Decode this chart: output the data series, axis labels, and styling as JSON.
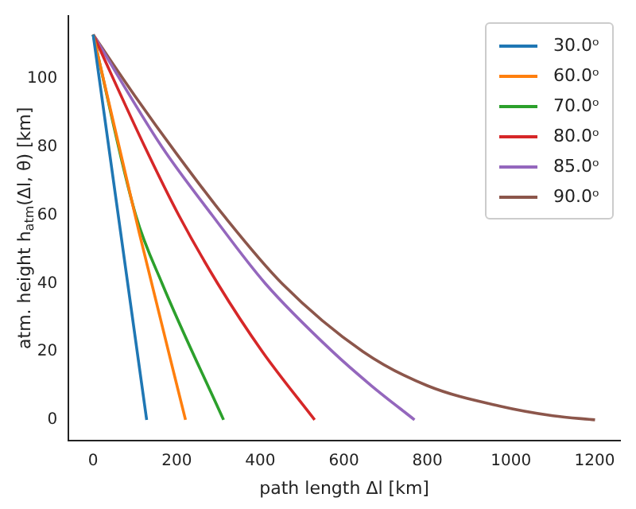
{
  "chart_data": {
    "type": "line",
    "xlabel": "path length Δl [km]",
    "ylabel": "atm. height h$_{atm}$(Δl, θ) [km]",
    "xlim": [
      -59,
      1261
    ],
    "ylim": [
      -6,
      118.5
    ],
    "xticks": [
      0,
      200,
      400,
      600,
      800,
      1000,
      1200
    ],
    "yticks": [
      0,
      20,
      40,
      60,
      80,
      100
    ],
    "legend": "top right",
    "grid": false,
    "marker": "none",
    "line_style": "solid",
    "series": [
      {
        "name": "30.0ᵒ",
        "color": "#1f77b4",
        "x": [
          0,
          128
        ],
        "values": [
          113,
          0
        ]
      },
      {
        "name": "60.0ᵒ",
        "color": "#ff7f0e",
        "x": [
          0,
          110,
          221
        ],
        "values": [
          113,
          55,
          0
        ]
      },
      {
        "name": "70.0ᵒ",
        "color": "#2ca02c",
        "x": [
          0,
          102,
          165,
          312
        ],
        "values": [
          113,
          60,
          40,
          0
        ]
      },
      {
        "name": "80.0ᵒ",
        "color": "#d62728",
        "x": [
          0,
          124,
          205,
          298,
          405,
          530
        ],
        "values": [
          113,
          80,
          60,
          40,
          20,
          0
        ]
      },
      {
        "name": "85.0ᵒ",
        "color": "#9467bd",
        "x": [
          0,
          165,
          285,
          412,
          573,
          666,
          769
        ],
        "values": [
          113,
          80,
          60,
          40,
          20,
          10,
          0
        ]
      },
      {
        "name": "90.0ᵒ",
        "color": "#8c564b",
        "x": [
          0,
          100,
          200,
          312,
          452,
          646,
          800,
          974,
          1100,
          1201
        ],
        "values": [
          113,
          95,
          78,
          60,
          40,
          20,
          10,
          4,
          1.2,
          0
        ]
      }
    ]
  }
}
